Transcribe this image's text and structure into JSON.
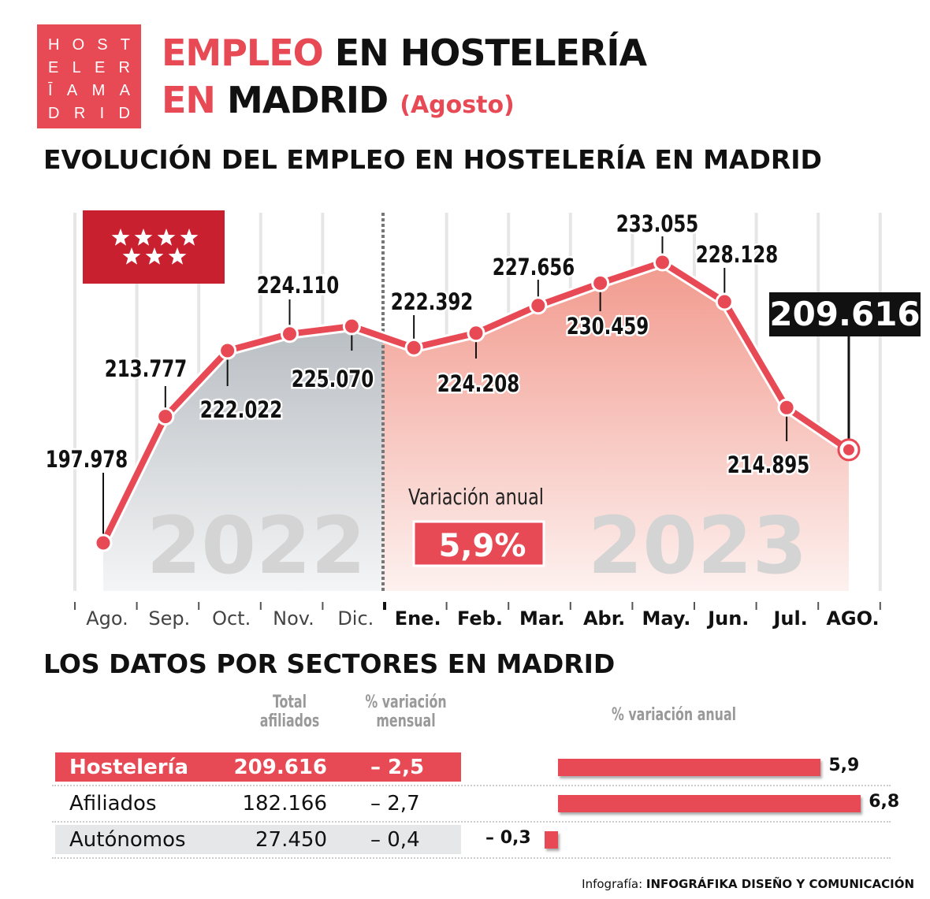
{
  "logo": {
    "lines": [
      "HOST",
      "ELER",
      "ĪAMA",
      "DRID"
    ]
  },
  "header": {
    "title_part1": "EMPLEO",
    "title_part2": "EN HOSTELERÍA",
    "title_part3": "EN",
    "title_part4": "MADRID",
    "subtitle": "(Agosto)"
  },
  "section1_title": "EVOLUCIÓN DEL EMPLEO EN HOSTELERÍA EN MADRID",
  "section2_title": "LOS DATOS POR SECTORES EN MADRID",
  "colors": {
    "accent": "#e84a55",
    "grey_area": "#c8ccd0",
    "pink_area": "#f4a89e"
  },
  "flag_icon": "madrid-flag-seven-stars",
  "chart_data": {
    "type": "line",
    "categories": [
      "Ago.",
      "Sep.",
      "Oct.",
      "Nov.",
      "Dic.",
      "Ene.",
      "Feb.",
      "Mar.",
      "Abr.",
      "May.",
      "Jun.",
      "Jul.",
      "AGO."
    ],
    "values": [
      197978,
      213777,
      222022,
      224110,
      225070,
      222392,
      224208,
      227656,
      230459,
      233055,
      228128,
      214895,
      209616
    ],
    "labels": [
      "197.978",
      "213.777",
      "222.022",
      "224.110",
      "225.070",
      "222.392",
      "224.208",
      "227.656",
      "230.459",
      "233.055",
      "228.128",
      "214.895",
      "209.616"
    ],
    "year_labels": [
      "2022",
      "2023"
    ],
    "annotation_label": "Variación anual",
    "annotation_value": "5,9%"
  },
  "table": {
    "headers": {
      "total": "Total afiliados",
      "mensual": "% variación mensual",
      "anual": "% variación anual"
    },
    "rows": [
      {
        "name": "Hostelería",
        "total": "209.616",
        "mensual": "– 2,5",
        "anual": 5.9,
        "anual_label": "5,9"
      },
      {
        "name": "Afiliados",
        "total": "182.166",
        "mensual": "– 2,7",
        "anual": 6.8,
        "anual_label": "6,8"
      },
      {
        "name": "Autónomos",
        "total": "27.450",
        "mensual": "– 0,4",
        "anual": -0.3,
        "anual_label": "– 0,3"
      }
    ]
  },
  "footer": {
    "prefix": "Infografía:",
    "credit": "INFOGRÁFIKA DISEÑO Y COMUNICACIÓN"
  }
}
